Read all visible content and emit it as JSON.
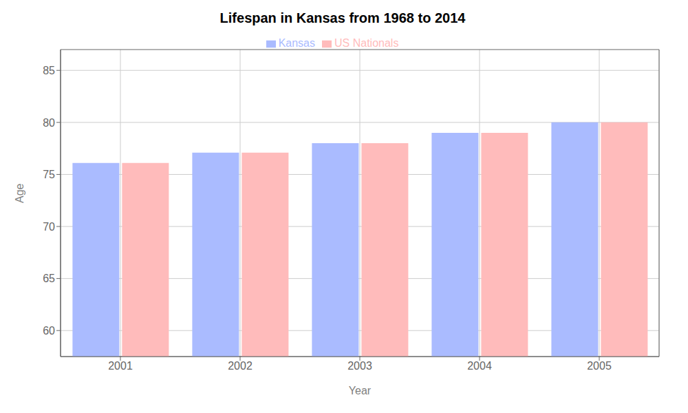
{
  "chart_data": {
    "type": "bar",
    "title": "Lifespan in Kansas from 1968 to 2014",
    "xlabel": "Year",
    "ylabel": "Age",
    "categories": [
      "2001",
      "2002",
      "2003",
      "2004",
      "2005"
    ],
    "series": [
      {
        "name": "Kansas",
        "color": "#aabbff",
        "values": [
          76.1,
          77.1,
          78.0,
          79.0,
          80.0
        ]
      },
      {
        "name": "US Nationals",
        "color": "#ffbbbb",
        "values": [
          76.1,
          77.1,
          78.0,
          79.0,
          80.0
        ]
      }
    ],
    "ylim": [
      57.5,
      87.0
    ],
    "yticks": [
      60,
      65,
      70,
      75,
      80,
      85
    ],
    "grid": true,
    "legend": "top"
  }
}
